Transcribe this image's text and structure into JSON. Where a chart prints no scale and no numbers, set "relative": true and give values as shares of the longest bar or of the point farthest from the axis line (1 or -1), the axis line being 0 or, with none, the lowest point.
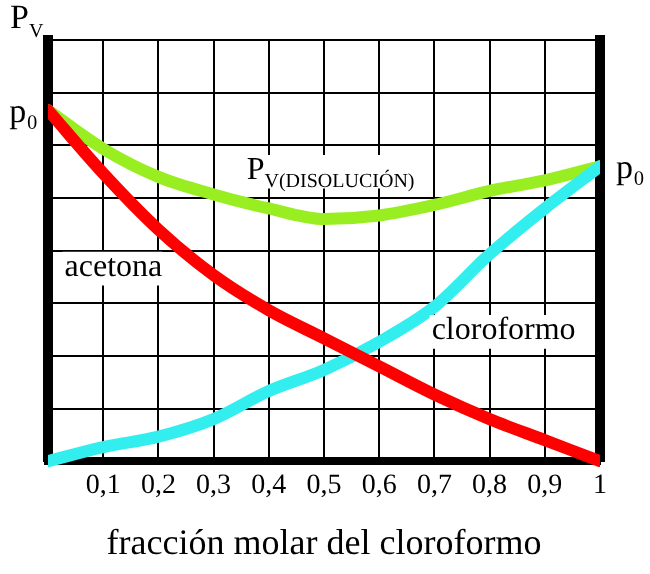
{
  "chart_data": {
    "type": "line",
    "ylabel": "P$_{V}$",
    "xlabel": "fracción molar del cloroformo",
    "relative": true,
    "x": [
      0,
      0.1,
      0.2,
      0.3,
      0.4,
      0.5,
      0.6,
      0.7,
      0.8,
      0.9,
      1
    ],
    "xlim": [
      0,
      1
    ],
    "xticks": [
      {
        "value": 0.1,
        "label": "0,1"
      },
      {
        "value": 0.2,
        "label": "0,2"
      },
      {
        "value": 0.3,
        "label": "0,3"
      },
      {
        "value": 0.4,
        "label": "0,4"
      },
      {
        "value": 0.5,
        "label": "0,5"
      },
      {
        "value": 0.6,
        "label": "0,6"
      },
      {
        "value": 0.7,
        "label": "0,7"
      },
      {
        "value": 0.8,
        "label": "0,8"
      },
      {
        "value": 0.9,
        "label": "0,9"
      },
      1
    ],
    "series": [
      {
        "name": "acetona",
        "color": "#ff0000",
        "values": [
          1,
          0.82,
          0.66,
          0.53,
          0.43,
          0.35,
          0.27,
          0.19,
          0.12,
          0.06,
          0
        ]
      },
      {
        "name": "cloroformo",
        "color": "#33eeee",
        "values": [
          0,
          0.04,
          0.07,
          0.12,
          0.2,
          0.26,
          0.34,
          0.44,
          0.59,
          0.72,
          0.84
        ]
      },
      {
        "name": "P$_{V(DISOLUCIÓN)}$",
        "color": "#99ee22",
        "values": [
          1,
          0.89,
          0.81,
          0.76,
          0.72,
          0.69,
          0.7,
          0.73,
          0.77,
          0.8,
          0.84
        ]
      }
    ],
    "annotations": [
      {
        "text": "p₀",
        "x": 0,
        "y": 1
      },
      {
        "text": "p₀",
        "x": 1,
        "y": 0.84
      }
    ],
    "grid": true,
    "legend": false,
    "marker": "none",
    "line_style": "solid"
  }
}
